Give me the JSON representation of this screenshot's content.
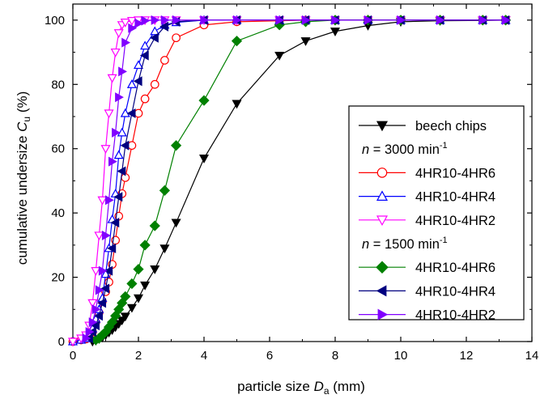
{
  "chart_data": {
    "type": "line",
    "title": "",
    "xlabel": {
      "prefix": "particle size ",
      "symbol": "D",
      "sub": "a",
      "suffix": " (mm)"
    },
    "ylabel": {
      "prefix": "cumulative undersize ",
      "symbol": "C",
      "sub": "u",
      "suffix": " (%)"
    },
    "xlim": [
      0,
      14
    ],
    "ylim": [
      0,
      105
    ],
    "xticks": [
      0,
      2,
      4,
      6,
      8,
      10,
      12,
      14
    ],
    "yticks": [
      0,
      20,
      40,
      60,
      80,
      100
    ],
    "grid": false,
    "legend_position": "right",
    "colors": {
      "black": "#000000",
      "red": "#ff0000",
      "blue": "#0000ff",
      "magenta": "#ff00ff",
      "green": "#008000",
      "navy": "#000080",
      "violet": "#8000ff"
    },
    "legend_headers": [
      {
        "before": 1,
        "symbol": "n",
        "text": " = 3000 min",
        "sup": "-1"
      },
      {
        "before": 4,
        "symbol": "n",
        "text": " = 1500 min",
        "sup": "-1"
      }
    ],
    "series": [
      {
        "name": "beech chips",
        "color": "#000000",
        "marker": "triangle-down",
        "filled": true,
        "x": [
          0.6,
          0.7,
          0.8,
          0.9,
          1.0,
          1.1,
          1.2,
          1.3,
          1.4,
          1.5,
          1.6,
          1.8,
          2.0,
          2.2,
          2.5,
          2.8,
          3.15,
          4.0,
          5.0,
          6.3,
          7.1,
          8.0,
          9.0,
          10.0,
          11.2,
          12.5,
          13.2
        ],
        "y": [
          0,
          0.3,
          0.8,
          1.3,
          2,
          2.8,
          3.6,
          4.5,
          5.5,
          6.6,
          7.8,
          10.5,
          13.5,
          17.5,
          22.5,
          29,
          37,
          57,
          74,
          89,
          93.5,
          96.5,
          98.3,
          99.5,
          99.8,
          99.9,
          100
        ]
      },
      {
        "name": "4HR10-4HR6",
        "color": "#ff0000",
        "marker": "circle",
        "filled": false,
        "x": [
          0,
          0.25,
          0.4,
          0.5,
          0.6,
          0.7,
          0.8,
          0.9,
          1.0,
          1.1,
          1.2,
          1.3,
          1.4,
          1.5,
          1.6,
          1.8,
          2.0,
          2.2,
          2.5,
          2.8,
          3.15,
          4.0,
          5.0,
          6.3,
          7.1,
          8.0,
          9.0,
          10.0,
          11.2,
          12.5,
          13.2
        ],
        "y": [
          0,
          0.5,
          0.8,
          1.2,
          3,
          6,
          9,
          12.5,
          15.5,
          18.5,
          24,
          31.5,
          39,
          46,
          51,
          61,
          71,
          75.5,
          80,
          87.5,
          94.5,
          98.5,
          99.5,
          99.8,
          100,
          100,
          100,
          100,
          100,
          100,
          100
        ]
      },
      {
        "name": "4HR10-4HR4",
        "color": "#0000ff",
        "marker": "triangle-up",
        "filled": false,
        "x": [
          0,
          0.25,
          0.4,
          0.5,
          0.6,
          0.7,
          0.8,
          0.9,
          1.0,
          1.1,
          1.2,
          1.3,
          1.4,
          1.5,
          1.6,
          1.8,
          2.0,
          2.2,
          2.5,
          2.8,
          3.15,
          4.0,
          5.0,
          6.3,
          7.1,
          8.0,
          9.0,
          10.0,
          11.2,
          12.5,
          13.2
        ],
        "y": [
          0,
          0.5,
          1,
          2,
          4,
          7,
          10,
          13.5,
          21,
          29,
          38,
          46,
          58,
          65,
          71,
          80,
          86,
          92,
          96.5,
          98.5,
          99.3,
          100,
          100,
          100,
          100,
          100,
          100,
          100,
          100,
          100,
          100
        ]
      },
      {
        "name": "4HR10-4HR2",
        "color": "#ff00ff",
        "marker": "triangle-down",
        "filled": false,
        "x": [
          0,
          0.25,
          0.4,
          0.5,
          0.6,
          0.7,
          0.8,
          0.9,
          1.0,
          1.1,
          1.2,
          1.3,
          1.4,
          1.5,
          1.6,
          1.8,
          2.0,
          2.2,
          2.5,
          2.8,
          3.15,
          4.0,
          5.0,
          6.3,
          7.1,
          8.0,
          9.0,
          10.0,
          11.2,
          12.5,
          13.2
        ],
        "y": [
          0,
          1,
          2,
          5,
          12,
          22,
          33,
          44,
          60,
          71,
          82,
          90,
          96,
          98.5,
          99.3,
          99.8,
          100,
          100,
          100,
          100,
          100,
          100,
          100,
          100,
          100,
          100,
          100,
          100,
          100,
          100,
          100
        ]
      },
      {
        "name": "4HR10-4HR6",
        "color": "#008000",
        "marker": "diamond",
        "filled": true,
        "x": [
          0.7,
          0.8,
          0.9,
          1.0,
          1.1,
          1.2,
          1.3,
          1.4,
          1.5,
          1.6,
          1.8,
          2.0,
          2.2,
          2.5,
          2.8,
          3.15,
          4.0,
          5.0,
          6.3,
          7.1,
          8.0,
          9.0,
          10.0,
          11.2,
          12.5,
          13.2
        ],
        "y": [
          0.5,
          1,
          2,
          3,
          4.5,
          6,
          8,
          10,
          12,
          14,
          18,
          22.5,
          30,
          36,
          47,
          61,
          75,
          93.5,
          98.5,
          99.5,
          100,
          100,
          100,
          100,
          100,
          100
        ]
      },
      {
        "name": "4HR10-4HR4",
        "color": "#000080",
        "marker": "triangle-left",
        "filled": true,
        "x": [
          0.5,
          0.6,
          0.7,
          0.8,
          0.9,
          1.0,
          1.1,
          1.2,
          1.3,
          1.4,
          1.5,
          1.6,
          1.8,
          2.0,
          2.2,
          2.5,
          2.8,
          3.15,
          4.0,
          5.0,
          6.3,
          7.1,
          8.0,
          9.0,
          10.0,
          11.2,
          12.5,
          13.2
        ],
        "y": [
          1,
          3,
          5,
          8,
          12,
          16.5,
          22,
          29,
          37,
          45,
          53,
          61,
          71,
          81,
          89,
          94.5,
          98,
          99.5,
          100,
          100,
          100,
          100,
          100,
          100,
          100,
          100,
          100,
          100
        ]
      },
      {
        "name": "4HR10-4HR2",
        "color": "#8000ff",
        "marker": "triangle-right",
        "filled": true,
        "x": [
          0.4,
          0.5,
          0.6,
          0.7,
          0.8,
          0.9,
          1.0,
          1.1,
          1.2,
          1.3,
          1.4,
          1.5,
          1.6,
          1.8,
          2.0,
          2.2,
          2.5,
          2.8,
          3.15,
          4.0,
          5.0,
          6.3,
          7.1,
          8.0,
          9.0,
          10.0,
          11.2,
          12.5,
          13.2
        ],
        "y": [
          1,
          3,
          6,
          10,
          16,
          22,
          33,
          44,
          56,
          65,
          76,
          84,
          93,
          97.5,
          99,
          99.8,
          100,
          100,
          100,
          100,
          100,
          100,
          100,
          100,
          100,
          100,
          100,
          100,
          100
        ]
      }
    ]
  }
}
